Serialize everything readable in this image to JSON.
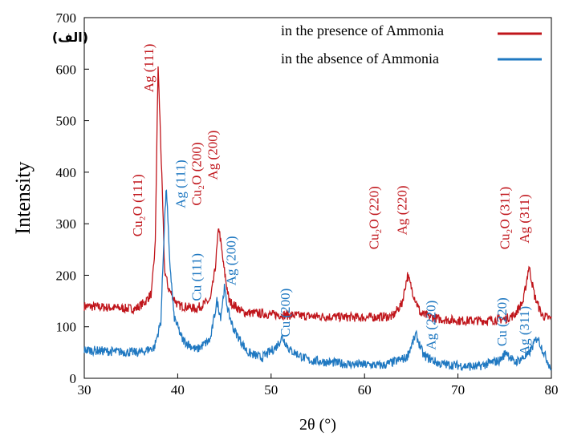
{
  "chart_data": {
    "type": "line",
    "title": "",
    "panel_label": "(الف)",
    "xlabel": "2θ (°)",
    "ylabel": "Intensity",
    "xlim": [
      30,
      80
    ],
    "ylim": [
      0,
      700
    ],
    "xticks": [
      30,
      40,
      50,
      60,
      70,
      80
    ],
    "yticks": [
      0,
      100,
      200,
      300,
      400,
      500,
      600,
      700
    ],
    "legend_position": "top-right",
    "grid": false,
    "series": [
      {
        "name": "in the presence of Ammonia",
        "color": "#c0151b",
        "baseline": 130,
        "points": [
          [
            30,
            140
          ],
          [
            32,
            138
          ],
          [
            34,
            136
          ],
          [
            35.5,
            135
          ],
          [
            36.5,
            148
          ],
          [
            37.2,
            165
          ],
          [
            37.6,
            260
          ],
          [
            37.9,
            608
          ],
          [
            38.2,
            450
          ],
          [
            38.6,
            210
          ],
          [
            39,
            175
          ],
          [
            40,
            142
          ],
          [
            42,
            135
          ],
          [
            43.5,
            152
          ],
          [
            44,
            210
          ],
          [
            44.4,
            295
          ],
          [
            44.9,
            220
          ],
          [
            45.5,
            150
          ],
          [
            47,
            128
          ],
          [
            50,
            124
          ],
          [
            55,
            120
          ],
          [
            60,
            118
          ],
          [
            63,
            120
          ],
          [
            64,
            145
          ],
          [
            64.6,
            200
          ],
          [
            65.2,
            165
          ],
          [
            66,
            125
          ],
          [
            68,
            115
          ],
          [
            70,
            112
          ],
          [
            73,
            112
          ],
          [
            75,
            115
          ],
          [
            76,
            122
          ],
          [
            77,
            150
          ],
          [
            77.6,
            218
          ],
          [
            78.2,
            160
          ],
          [
            79,
            122
          ],
          [
            80,
            115
          ]
        ]
      },
      {
        "name": "in the absence of Ammonia",
        "color": "#1f78c1",
        "baseline": 50,
        "points": [
          [
            30,
            55
          ],
          [
            33,
            52
          ],
          [
            36,
            50
          ],
          [
            37.5,
            60
          ],
          [
            38.2,
            110
          ],
          [
            38.6,
            310
          ],
          [
            38.8,
            370
          ],
          [
            39.1,
            240
          ],
          [
            39.6,
            120
          ],
          [
            40.5,
            75
          ],
          [
            42,
            55
          ],
          [
            43.5,
            75
          ],
          [
            44.2,
            150
          ],
          [
            44.6,
            120
          ],
          [
            45,
            175
          ],
          [
            45.4,
            130
          ],
          [
            46,
            95
          ],
          [
            47.5,
            50
          ],
          [
            49,
            40
          ],
          [
            50.5,
            60
          ],
          [
            51.2,
            80
          ],
          [
            52,
            55
          ],
          [
            54,
            35
          ],
          [
            58,
            28
          ],
          [
            62,
            25
          ],
          [
            64.5,
            40
          ],
          [
            65.5,
            85
          ],
          [
            66.3,
            45
          ],
          [
            68,
            28
          ],
          [
            72,
            22
          ],
          [
            74.5,
            35
          ],
          [
            75.2,
            52
          ],
          [
            76,
            30
          ],
          [
            77.5,
            45
          ],
          [
            78.5,
            80
          ],
          [
            79.3,
            45
          ],
          [
            80,
            18
          ]
        ]
      }
    ],
    "annotations_red": [
      {
        "label": "Cu₂O (111)",
        "x": 36.2,
        "y": 275
      },
      {
        "label": "Ag (111)",
        "x": 37.4,
        "y": 555
      },
      {
        "label": "Cu₂O (200)",
        "x": 42.5,
        "y": 335
      },
      {
        "label": "Ag (200)",
        "x": 44.2,
        "y": 385
      },
      {
        "label": "Cu₂O (220)",
        "x": 61.5,
        "y": 250
      },
      {
        "label": "Ag (220)",
        "x": 64.5,
        "y": 278
      },
      {
        "label": "Cu₂O (311)",
        "x": 75.5,
        "y": 250
      },
      {
        "label": "Ag (311)",
        "x": 77.6,
        "y": 262
      }
    ],
    "annotations_blue": [
      {
        "label": "Ag (111)",
        "x": 40.8,
        "y": 330
      },
      {
        "label": "Cu (111)",
        "x": 42.5,
        "y": 150
      },
      {
        "label": "Ag (200)",
        "x": 46.2,
        "y": 180
      },
      {
        "label": "Cu (200)",
        "x": 52,
        "y": 80
      },
      {
        "label": "Ag (220)",
        "x": 67.6,
        "y": 55
      },
      {
        "label": "Cu (220)",
        "x": 75.2,
        "y": 62
      },
      {
        "label": "Ag (311)",
        "x": 77.6,
        "y": 45
      }
    ]
  }
}
